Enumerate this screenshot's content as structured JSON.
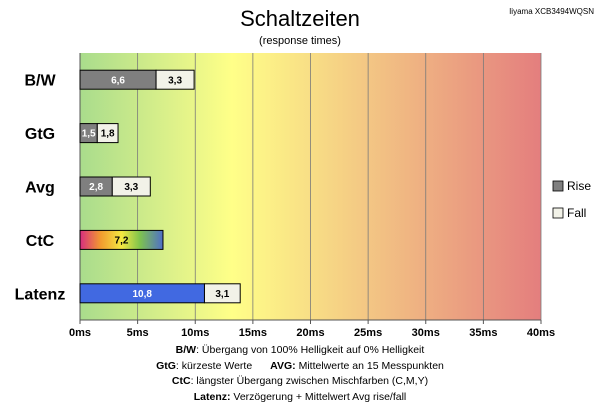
{
  "header": {
    "title": "Schaltzeiten",
    "subtitle": "(response times)",
    "model": "Iiyama XCB3494WQSN"
  },
  "colors": {
    "rise": "#7f7f7f",
    "fall": "#f2f2e8",
    "latenz": "#4169e1",
    "background_gradient": [
      "#a9dc8c",
      "#ffff88",
      "#e47e7e"
    ],
    "ctc_gradient": [
      "#d62d7f",
      "#f29b2f",
      "#f4e842",
      "#7fc34d",
      "#3aa5a5",
      "#4f6fc8"
    ]
  },
  "chart_data": {
    "type": "bar",
    "orientation": "horizontal",
    "stacked": true,
    "categories": [
      "B/W",
      "GtG",
      "Avg",
      "CtC",
      "Latenz"
    ],
    "series": [
      {
        "name": "Rise",
        "values": [
          6.6,
          1.5,
          2.8,
          null,
          null
        ]
      },
      {
        "name": "Fall",
        "values": [
          3.3,
          1.8,
          3.3,
          null,
          null
        ]
      }
    ],
    "single_values": {
      "CtC": 7.2,
      "Latenz": [
        10.8,
        3.1
      ]
    },
    "bar_labels": {
      "B/W": [
        "6,6",
        "3,3"
      ],
      "GtG": [
        "1,5",
        "1,8"
      ],
      "Avg": [
        "2,8",
        "3,3"
      ],
      "CtC": [
        "7,2"
      ],
      "Latenz": [
        "10,8",
        "3,1"
      ]
    },
    "xlim": [
      0,
      40
    ],
    "xticks": [
      0,
      5,
      10,
      15,
      20,
      25,
      30,
      35,
      40
    ],
    "xtick_labels": [
      "0ms",
      "5ms",
      "10ms",
      "15ms",
      "20ms",
      "25ms",
      "30ms",
      "35ms",
      "40ms"
    ],
    "grid": true,
    "legend_position": "right",
    "legend": [
      "Rise",
      "Fall"
    ]
  },
  "notes": {
    "bw_key": "B/W",
    "bw_text": ":  Übergang von 100% Helligkeit auf 0% Helligkeit",
    "gtg_key": "GtG",
    "gtg_text": ": kürzeste  Werte",
    "avg_key": "AVG:",
    "avg_text": " Mittelwerte  an 15 Messpunkten",
    "ctc_key": "CtC",
    "ctc_text": ": längster Übergang  zwischen Mischfarben  (C,M,Y)",
    "latenz_key": "Latenz:",
    "latenz_text": " Verzögerung  + Mittelwert Avg rise/fall"
  }
}
